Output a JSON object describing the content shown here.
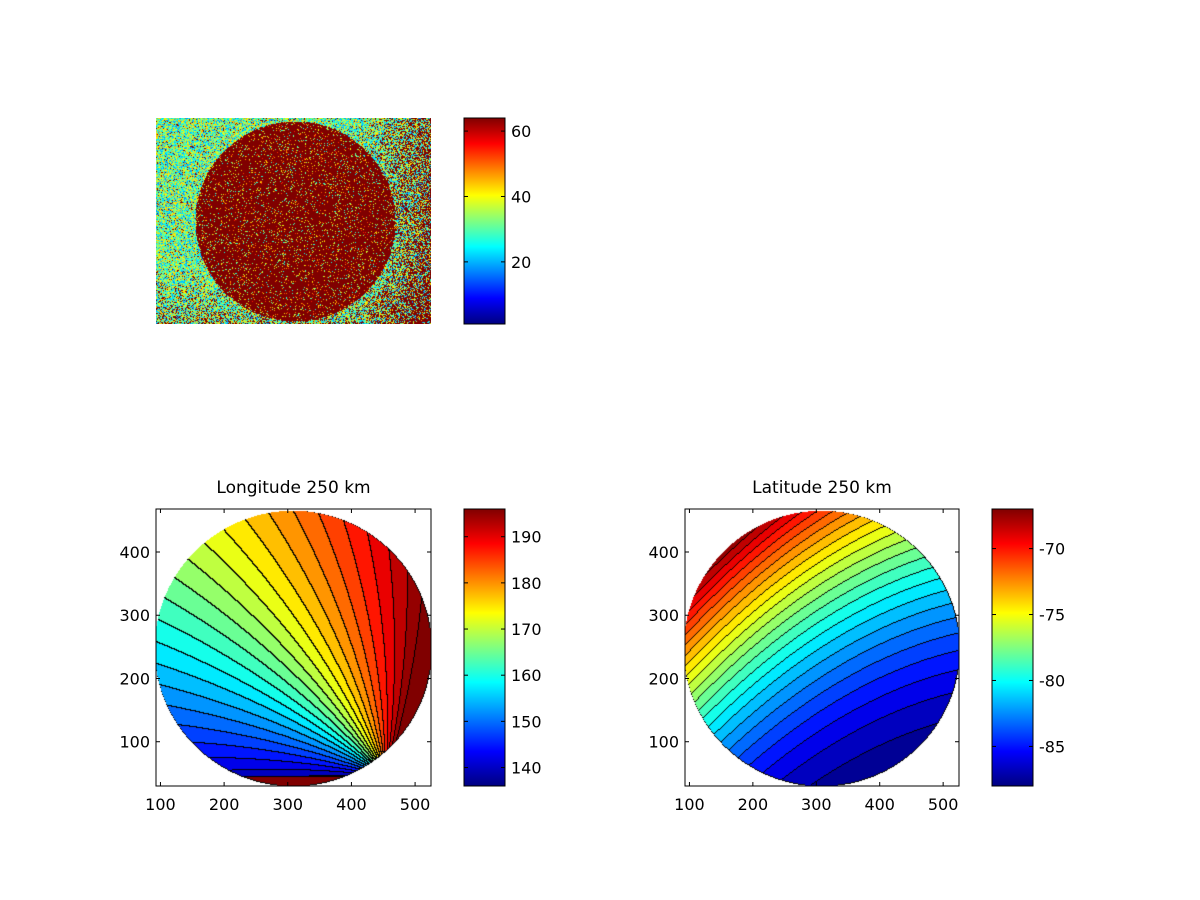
{
  "chart_data": [
    {
      "type": "heatmap",
      "title": "",
      "xlabel": "",
      "ylabel": "",
      "axes_visible": false,
      "colormap": "jet",
      "description_values": {
        "disk_value": 64,
        "background_low": 25,
        "background_high": 40
      },
      "colorbar": {
        "range": [
          1,
          64
        ],
        "ticks": [
          20,
          40,
          60
        ],
        "tick_labels": [
          "20",
          "40",
          "60"
        ]
      }
    },
    {
      "type": "heatmap",
      "title": "Longitude 250 km",
      "xlabel": "",
      "ylabel": "",
      "colormap": "jet",
      "contours": true,
      "xlim": [
        93,
        525
      ],
      "ylim": [
        30,
        468
      ],
      "xticks": [
        100,
        200,
        300,
        400,
        500
      ],
      "xtick_labels": [
        "100",
        "200",
        "300",
        "400",
        "500"
      ],
      "yticks": [
        100,
        200,
        300,
        400
      ],
      "ytick_labels": [
        "100",
        "200",
        "300",
        "400"
      ],
      "disk": {
        "center": [
          308,
          248
        ],
        "radius": 218
      },
      "value_range": [
        136,
        196
      ],
      "colorbar": {
        "range": [
          136,
          196
        ],
        "ticks": [
          140,
          150,
          160,
          170,
          180,
          190
        ],
        "tick_labels": [
          "140",
          "150",
          "160",
          "170",
          "180",
          "190"
        ]
      }
    },
    {
      "type": "heatmap",
      "title": "Latitude 250 km",
      "xlabel": "",
      "ylabel": "",
      "colormap": "jet",
      "contours": true,
      "xlim": [
        93,
        525
      ],
      "ylim": [
        30,
        468
      ],
      "xticks": [
        100,
        200,
        300,
        400,
        500
      ],
      "xtick_labels": [
        "100",
        "200",
        "300",
        "400",
        "500"
      ],
      "yticks": [
        100,
        200,
        300,
        400
      ],
      "ytick_labels": [
        "100",
        "200",
        "300",
        "400"
      ],
      "disk": {
        "center": [
          308,
          248
        ],
        "radius": 218
      },
      "value_range": [
        -88,
        -67
      ],
      "colorbar": {
        "range": [
          -88,
          -67
        ],
        "ticks": [
          -85,
          -80,
          -75,
          -70
        ],
        "tick_labels": [
          "-85",
          "-80",
          "-75",
          "-70"
        ]
      }
    }
  ]
}
